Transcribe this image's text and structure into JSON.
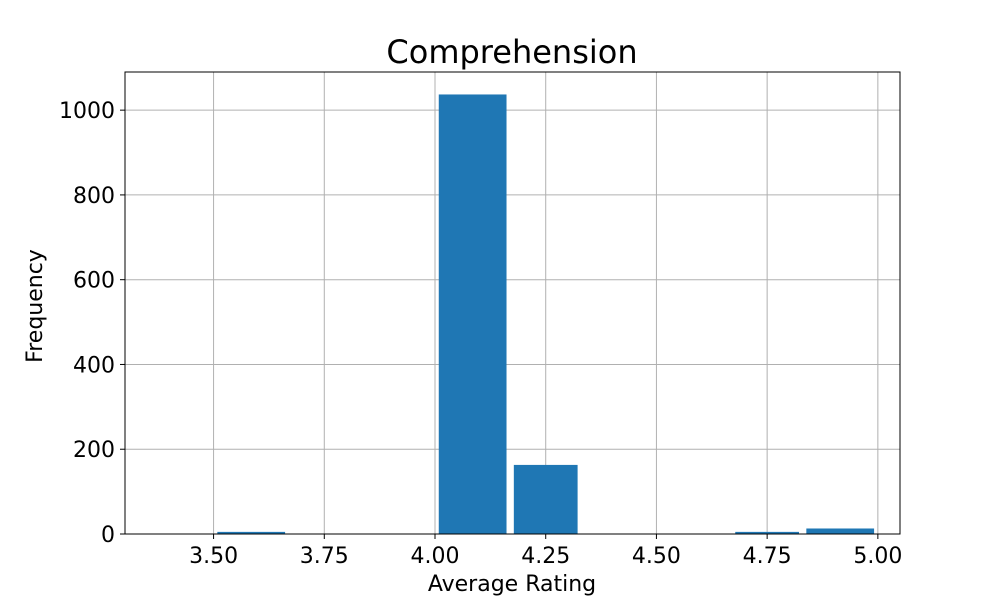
{
  "chart_data": {
    "type": "bar",
    "title": "Comprehension",
    "xlabel": "Average Rating",
    "ylabel": "Frequency",
    "xlim": [
      3.3,
      5.05
    ],
    "ylim": [
      0,
      1090
    ],
    "xticks": [
      3.5,
      3.75,
      4.0,
      4.25,
      4.5,
      4.75,
      5.0
    ],
    "xtick_labels": [
      "3.50",
      "3.75",
      "4.00",
      "4.25",
      "4.50",
      "4.75",
      "5.00"
    ],
    "yticks": [
      0,
      200,
      400,
      600,
      800,
      1000
    ],
    "ytick_labels": [
      "0",
      "200",
      "400",
      "600",
      "800",
      "1000"
    ],
    "grid": true,
    "bar_color": "#1f77b4",
    "bins": [
      {
        "x0": 3.33,
        "x1": 3.5,
        "value": 0
      },
      {
        "x0": 3.5,
        "x1": 3.67,
        "value": 5
      },
      {
        "x0": 3.67,
        "x1": 3.83,
        "value": 0
      },
      {
        "x0": 3.83,
        "x1": 4.0,
        "value": 0
      },
      {
        "x0": 4.0,
        "x1": 4.17,
        "value": 1037
      },
      {
        "x0": 4.17,
        "x1": 4.33,
        "value": 163
      },
      {
        "x0": 4.33,
        "x1": 4.5,
        "value": 0
      },
      {
        "x0": 4.5,
        "x1": 4.67,
        "value": 0
      },
      {
        "x0": 4.67,
        "x1": 4.83,
        "value": 5
      },
      {
        "x0": 4.83,
        "x1": 5.0,
        "value": 13
      }
    ]
  }
}
